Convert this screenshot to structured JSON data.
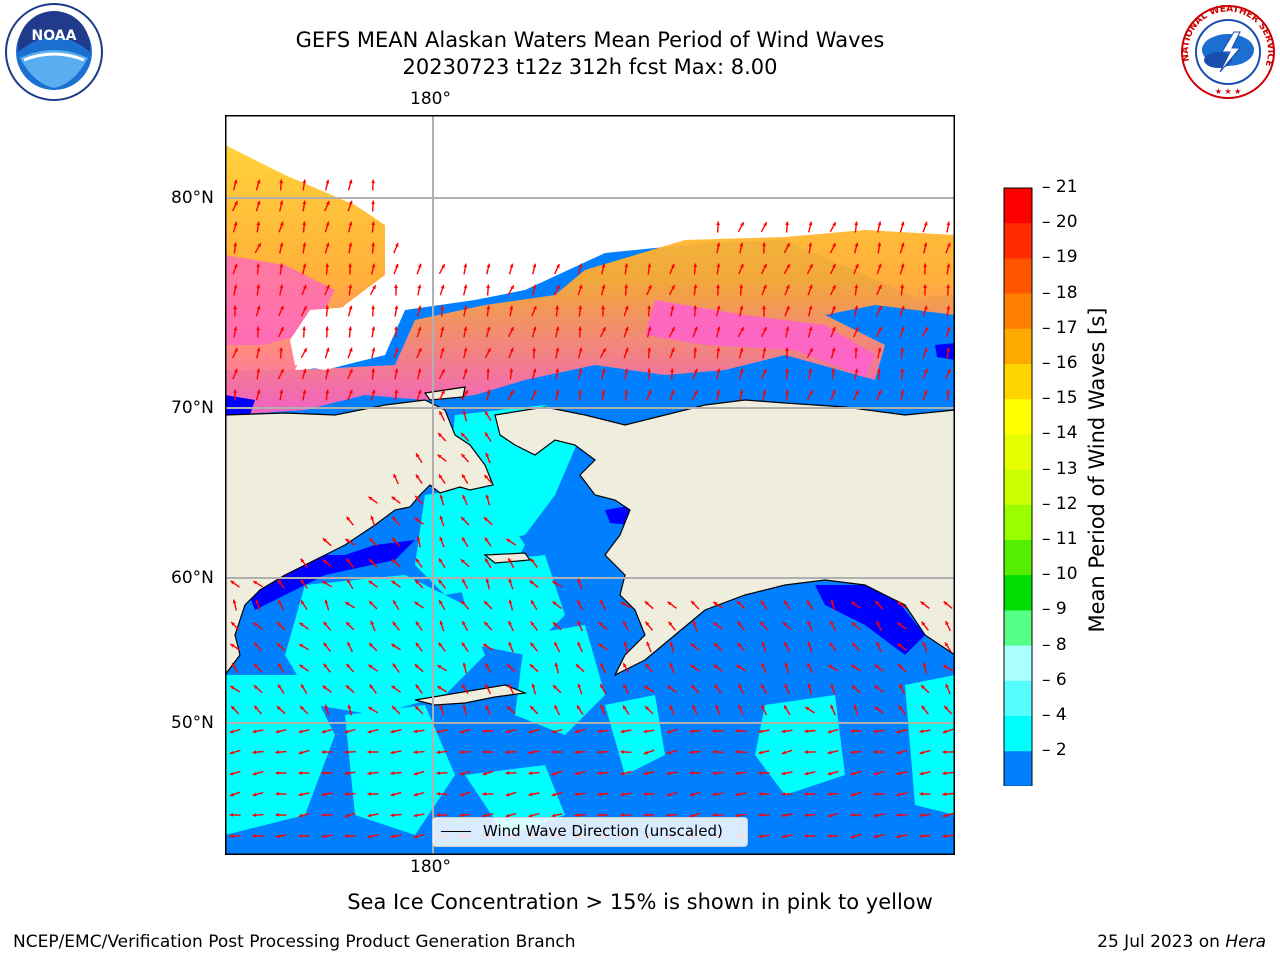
{
  "title": {
    "line1": "GEFS MEAN Alaskan Waters Mean Period of Wind Waves",
    "line2": "20230723 t12z 312h fcst   Max: 8.00"
  },
  "map": {
    "lon_label_top": "180°",
    "lon_label_bottom": "180°",
    "lat_labels": [
      "80°N",
      "70°N",
      "60°N",
      "50°N"
    ],
    "legend_label": "Wind Wave Direction (unscaled)",
    "vector_color": "#ff0000",
    "land_color": "#efedde",
    "ocean_colors": {
      "deep": "#0000ff",
      "low": "#0080ff",
      "mid": "#00ffff"
    }
  },
  "colorbar": {
    "label": "Mean Period of Wind Waves [s]",
    "ticks": [
      "21",
      "20",
      "19",
      "18",
      "17",
      "16",
      "15",
      "14",
      "13",
      "12",
      "11",
      "10",
      "9",
      "8",
      "6",
      "4",
      "2"
    ],
    "colors": [
      "#ff0000",
      "#ff2a00",
      "#ff5500",
      "#ff8000",
      "#ffaa00",
      "#ffd500",
      "#ffff00",
      "#e5ff00",
      "#ccff00",
      "#99ff00",
      "#55ee00",
      "#00dd00",
      "#55ff88",
      "#aaffff",
      "#55ffff",
      "#00ffff",
      "#0080ff"
    ],
    "extend_color": "#0000ff"
  },
  "note": "Sea Ice Concentration > 15% is shown in pink to yellow",
  "footer": {
    "left": "NCEP/EMC/Verification Post Processing Product Generation Branch",
    "date": "25 Jul 2023 on ",
    "machine": "Hera"
  },
  "logos": {
    "noaa_text": "NOAA",
    "nws_text": "NATIONAL WEATHER SERVICE"
  }
}
